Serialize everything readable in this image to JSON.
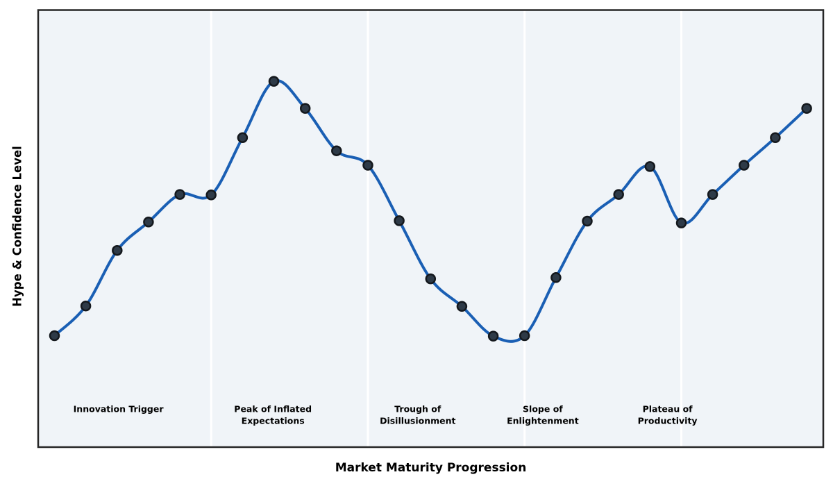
{
  "chart_data": {
    "type": "line",
    "title": "",
    "xlabel": "Market Maturity Progression",
    "ylabel": "Hype & Confidence Level",
    "x": [
      0,
      1,
      2,
      3,
      4,
      5,
      6,
      7,
      8,
      9,
      10,
      11,
      12,
      13,
      14,
      15,
      16,
      17,
      18,
      19,
      20,
      21,
      22,
      23,
      24
    ],
    "series": [
      {
        "name": "Hype & Confidence Level",
        "values": [
          25.5,
          32.3,
          45.0,
          51.5,
          57.8,
          57.7,
          70.8,
          83.7,
          77.5,
          67.8,
          64.5,
          51.8,
          38.5,
          32.2,
          25.4,
          25.5,
          38.8,
          51.7,
          57.8,
          64.2,
          51.3,
          57.8,
          64.5,
          70.8,
          77.5
        ]
      }
    ],
    "xlim": [
      -0.52,
      24.53
    ],
    "ylim": [
      0,
      100
    ],
    "grid": false,
    "legend_position": "none",
    "axis_ticks_visible": false,
    "curve_style": "smooth-spline-with-markers",
    "phase_boundaries_x": [
      5,
      10,
      15,
      20
    ],
    "phases": [
      {
        "label": "Innovation Trigger",
        "label_lines": [
          "Innovation Trigger"
        ],
        "label_x": 2.04
      },
      {
        "label": "Peak of Inflated Expectations",
        "label_lines": [
          "Peak of Inflated",
          "Expectations"
        ],
        "label_x": 6.97
      },
      {
        "label": "Trough of Disillusionment",
        "label_lines": [
          "Trough of",
          "Disillusionment"
        ],
        "label_x": 11.59
      },
      {
        "label": "Slope of Enlightenment",
        "label_lines": [
          "Slope of",
          "Enlightenment"
        ],
        "label_x": 15.58
      },
      {
        "label": "Plateau of Productivity",
        "label_lines": [
          "Plateau of",
          "Productivity"
        ],
        "label_x": 19.56
      }
    ],
    "colors": {
      "line": "#1a5fb4",
      "marker_fill": "#2e3a47",
      "marker_edge": "#14181d",
      "plot_background": "#f0f4f8",
      "phase_divider": "#ffffff",
      "frame": "#262626",
      "text": "#000000",
      "figure_background": "#ffffff"
    }
  }
}
